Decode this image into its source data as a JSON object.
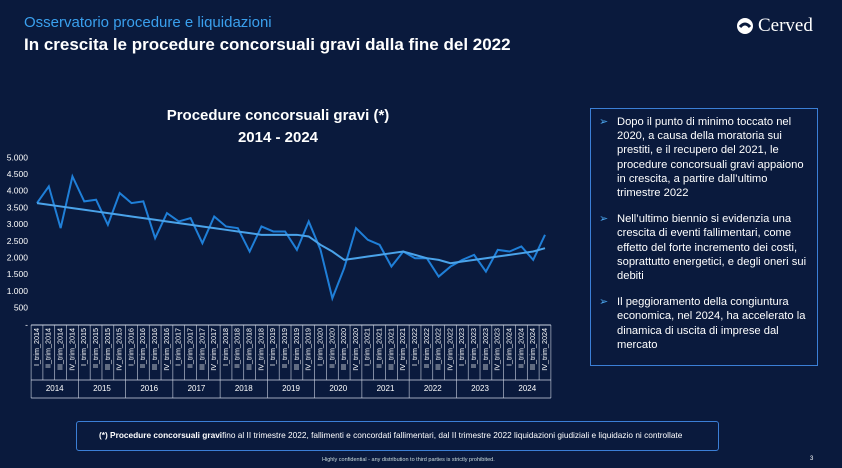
{
  "header": {
    "kicker": "Osservatorio procedure e liquidazioni",
    "title": "In crescita le procedure concorsuali gravi dalla fine del 2022",
    "logo": "Cerved"
  },
  "chart_data": {
    "type": "line",
    "title": "Procedure concorsuali  gravi (*)",
    "subtitle": "2014 - 2024",
    "categories": [
      "I_trim_2014",
      "II_trim_2014",
      "III_trim_2014",
      "IV_trim_2014",
      "I_trim_2015",
      "II_trim_2015",
      "III_trim_2015",
      "IV_trim_2015",
      "I_trim_2016",
      "II_trim_2016",
      "III_trim_2016",
      "IV_trim_2016",
      "I_trim_2017",
      "II_trim_2017",
      "III_trim_2017",
      "IV_trim_2017",
      "I_trim_2018",
      "II_trim_2018",
      "III_trim_2018",
      "IV_trim_2018",
      "I_trim_2019",
      "II_trim_2019",
      "III_trim_2019",
      "IV_trim_2019",
      "I_trim_2020",
      "II_trim_2020",
      "III_trim_2020",
      "IV_trim_2020",
      "I_trim_2021",
      "II_trim_2021",
      "III_trim_2021",
      "IV_trim_2021",
      "I_trim_2022",
      "II_trim_2022",
      "III_trim_2022",
      "IV_trim_2022",
      "I_trim_2023",
      "II_trim_2023",
      "III_trim_2023",
      "IV_trim_2023",
      "I_trim_2024",
      "II_trim_2024",
      "III_trim_2024",
      "IV_trim_2024"
    ],
    "groups": [
      "2014",
      "2015",
      "2016",
      "2017",
      "2018",
      "2019",
      "2020",
      "2021",
      "2022",
      "2023",
      "2024"
    ],
    "series": [
      {
        "color": "#1f7fd8",
        "values": [
          3650,
          4150,
          2900,
          4450,
          3700,
          3750,
          3000,
          3950,
          3650,
          3700,
          2600,
          3350,
          3100,
          3200,
          2450,
          3250,
          2950,
          2900,
          2200,
          2950,
          2800,
          2800,
          2250,
          3100,
          2250,
          800,
          1700,
          2900,
          2550,
          2400,
          1750,
          2200,
          2000,
          2000,
          1450,
          1750,
          1950,
          2100,
          1600,
          2250,
          2200,
          2350,
          1950,
          2700
        ]
      },
      {
        "color": "#4aa3ea",
        "values": [
          3650,
          3600,
          3550,
          3500,
          3450,
          3400,
          3350,
          3300,
          3250,
          3200,
          3150,
          3100,
          3050,
          3000,
          2950,
          2900,
          2850,
          2800,
          2750,
          2700,
          2700,
          2700,
          2700,
          2650,
          2400,
          2200,
          1950,
          2000,
          2050,
          2100,
          2150,
          2200,
          2100,
          2000,
          1950,
          1850,
          1900,
          1950,
          2000,
          2050,
          2100,
          2150,
          2200,
          2300
        ]
      }
    ],
    "ylim": [
      0,
      5000
    ],
    "yticks": [
      {
        "value": 0,
        "label": "-"
      },
      500,
      {
        "value": 1000,
        "label": "1.000"
      },
      {
        "value": 1500,
        "label": "1.500"
      },
      {
        "value": 2000,
        "label": "2.000"
      },
      {
        "value": 2500,
        "label": "2.500"
      },
      {
        "value": 3000,
        "label": "3.000"
      },
      {
        "value": 3500,
        "label": "3.500"
      },
      {
        "value": 4000,
        "label": "4.000"
      },
      {
        "value": 4500,
        "label": "4.500"
      },
      {
        "value": 5000,
        "label": "5.000"
      }
    ]
  },
  "panel": {
    "bullets": [
      "Dopo il punto di minimo toccato nel 2020, a causa della moratoria sui prestiti, e il recupero del 2021, le procedure concorsuali gravi appaiono in crescita, a partire dall’ultimo trimestre 2022",
      "Nell’ultimo biennio si evidenzia una crescita di eventi fallimentari, come effetto del forte incremento dei costi, soprattutto energetici, e degli oneri sui debiti",
      "Il peggioramento della congiuntura economica, nel 2024, ha accelerato la dinamica di uscita di imprese dal mercato"
    ]
  },
  "footnote": {
    "bold": "(*) Procedure concorsuali gravi",
    "text": "fino al II trimestre 2022, fallimenti e concordati fallimentari, dal II trimestre 2022 liquidazioni giudiziali e liquidazio  ni controllate"
  },
  "footer": {
    "confidential": "Highly confidential - any distribution to third parties is strictly prohibited.",
    "page": "3"
  }
}
